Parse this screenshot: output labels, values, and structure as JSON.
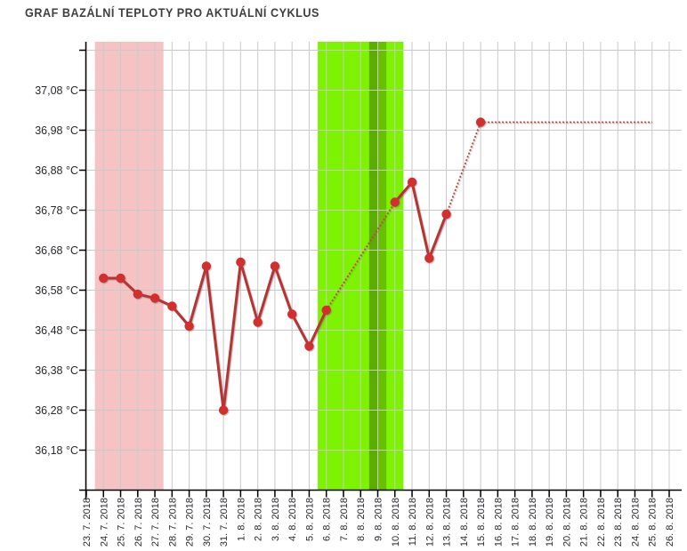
{
  "header": {
    "title": "GRAF BAZÁLNÍ TEPLOTY PRO AKTUÁLNÍ CYKLUS"
  },
  "chart_data": {
    "type": "line",
    "title": "GRAF BAZÁLNÍ TEPLOTY PRO AKTUÁLNÍ CYKLUS",
    "y_unit": "°C",
    "grid": true,
    "legend": "none",
    "ylim": [
      36.08,
      37.18
    ],
    "y_ticks": [
      {
        "value": 37.08,
        "label": "37,08 °C"
      },
      {
        "value": 36.98,
        "label": "36,98 °C"
      },
      {
        "value": 36.88,
        "label": "36,88 °C"
      },
      {
        "value": 36.78,
        "label": "36,78 °C"
      },
      {
        "value": 36.68,
        "label": "36,68 °C"
      },
      {
        "value": 36.58,
        "label": "36,58 °C"
      },
      {
        "value": 36.48,
        "label": "36,48 °C"
      },
      {
        "value": 36.38,
        "label": "36,38 °C"
      },
      {
        "value": 36.28,
        "label": "36,28 °C"
      },
      {
        "value": 36.18,
        "label": "36,18 °C"
      }
    ],
    "unlabeled_top_gridline_value": 37.18,
    "x_categories": [
      "23. 7. 2018",
      "24. 7. 2018",
      "25. 7. 2018",
      "26. 7. 2018",
      "27. 7. 2018",
      "28. 7. 2018",
      "29. 7. 2018",
      "30. 7. 2018",
      "31. 7. 2018",
      "1. 8. 2018",
      "2. 8. 2018",
      "3. 8. 2018",
      "4. 8. 2018",
      "5. 8. 2018",
      "6. 8. 2018",
      "7. 8. 2018",
      "8. 8. 2018",
      "9. 8. 2018",
      "10. 8. 2018",
      "11. 8. 2018",
      "12. 8. 2018",
      "13. 8. 2018",
      "14. 8. 2018",
      "15. 8. 2018",
      "16. 8. 2018",
      "17. 8. 2018",
      "18. 8. 2018",
      "19. 8. 2018",
      "20. 8. 2018",
      "21. 8. 2018",
      "22. 8. 2018",
      "23. 8. 2018",
      "24. 8. 2018",
      "25. 8. 2018",
      "26. 8. 2018"
    ],
    "measured_points": [
      {
        "date": "24. 7. 2018",
        "temp": 36.61
      },
      {
        "date": "25. 7. 2018",
        "temp": 36.61
      },
      {
        "date": "26. 7. 2018",
        "temp": 36.57
      },
      {
        "date": "27. 7. 2018",
        "temp": 36.56
      },
      {
        "date": "28. 7. 2018",
        "temp": 36.54
      },
      {
        "date": "29. 7. 2018",
        "temp": 36.49
      },
      {
        "date": "30. 7. 2018",
        "temp": 36.64
      },
      {
        "date": "31. 7. 2018",
        "temp": 36.28
      },
      {
        "date": "1. 8. 2018",
        "temp": 36.65
      },
      {
        "date": "2. 8. 2018",
        "temp": 36.5
      },
      {
        "date": "3. 8. 2018",
        "temp": 36.64
      },
      {
        "date": "4. 8. 2018",
        "temp": 36.52
      },
      {
        "date": "5. 8. 2018",
        "temp": 36.44
      },
      {
        "date": "6. 8. 2018",
        "temp": 36.53
      },
      {
        "date": "10. 8. 2018",
        "temp": 36.8
      },
      {
        "date": "11. 8. 2018",
        "temp": 36.85
      },
      {
        "date": "12. 8. 2018",
        "temp": 36.66
      },
      {
        "date": "13. 8. 2018",
        "temp": 36.77
      },
      {
        "date": "15. 8. 2018",
        "temp": 37.0
      }
    ],
    "segments": [
      {
        "style": "solid",
        "from": "24. 7. 2018",
        "to": "6. 8. 2018"
      },
      {
        "style": "dotted",
        "from": "6. 8. 2018",
        "to": "10. 8. 2018"
      },
      {
        "style": "solid",
        "from": "10. 8. 2018",
        "to": "13. 8. 2018"
      },
      {
        "style": "dotted",
        "from": "13. 8. 2018",
        "to": "15. 8. 2018"
      },
      {
        "style": "dotted",
        "from": "15. 8. 2018",
        "to": "25. 8. 2018",
        "end_temp": 37.0
      }
    ],
    "bands": [
      {
        "name": "menstruation-band",
        "color": "#f5c3c3",
        "from_day": "24. 7. 2018",
        "to_day": "27. 7. 2018"
      },
      {
        "name": "fertile-window-band",
        "color": "#7df201",
        "from_day": "6. 8. 2018",
        "to_day": "10. 8. 2018"
      },
      {
        "name": "ovulation-band-dark",
        "color": "#5dac02",
        "from_day": "9. 8. 2018",
        "to_day": "9. 8. 2018",
        "part": "first_half"
      },
      {
        "name": "ovulation-band-light",
        "color": "#69c002",
        "from_day": "9. 8. 2018",
        "to_day": "9. 8. 2018",
        "part": "second_half"
      }
    ],
    "colors": {
      "line_solid": "#b83434",
      "line_dotted": "#c04747",
      "point_fill": "#d22f2f",
      "gridline": "#c9c9c9",
      "axis": "#000000",
      "tick_label": "#28282e",
      "title": "#3f3f3f"
    }
  }
}
